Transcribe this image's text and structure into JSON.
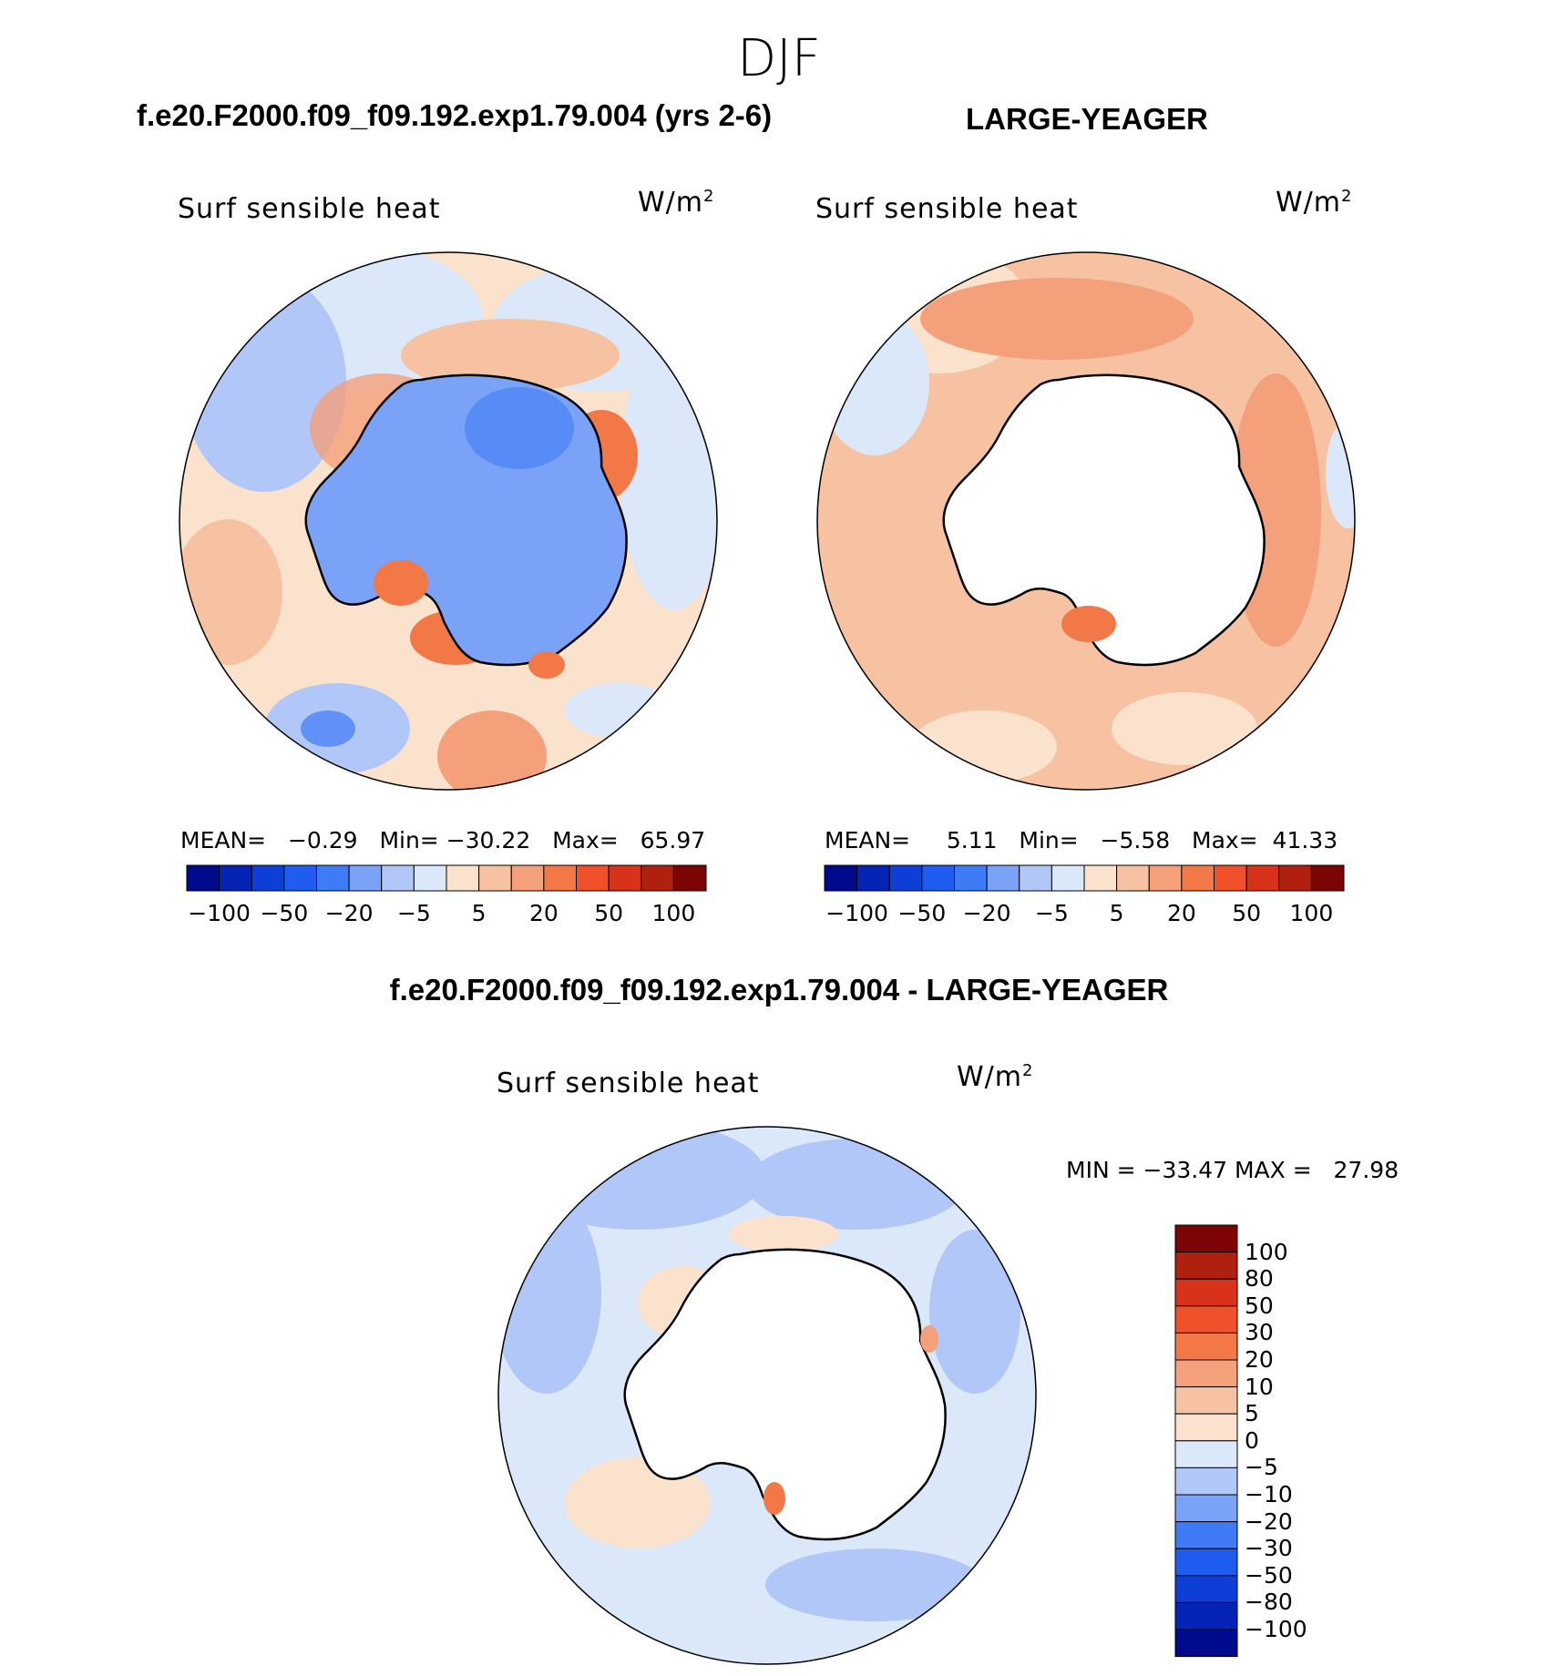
{
  "season": "DJF",
  "panels": [
    {
      "case_title": "f.e20.F2000.f09_f09.192.exp1.79.004 (yrs 2-6)",
      "variable": "Surf  sensible  heat",
      "units": "W/m",
      "units_sup": "2",
      "stats": {
        "mean_label": "MEAN=",
        "mean": "−0.29",
        "min_label": "Min=",
        "min": "−30.22",
        "max_label": "Max=",
        "max": "65.97"
      },
      "colorbar_ticks": [
        "−100",
        "−50",
        "−20",
        "−5",
        "5",
        "20",
        "50",
        "100"
      ]
    },
    {
      "case_title": "LARGE-YEAGER",
      "variable": "Surf  sensible  heat",
      "units": "W/m",
      "units_sup": "2",
      "stats": {
        "mean_label": "MEAN=",
        "mean": "5.11",
        "min_label": "Min=",
        "min": "−5.58",
        "max_label": "Max=",
        "max": "41.33"
      },
      "colorbar_ticks": [
        "−100",
        "−50",
        "−20",
        "−5",
        "5",
        "20",
        "50",
        "100"
      ]
    },
    {
      "case_title": "f.e20.F2000.f09_f09.192.exp1.79.004 - LARGE-YEAGER",
      "variable": "Surf  sensible  heat",
      "units": "W/m",
      "units_sup": "2",
      "stats": {
        "min_label": "MIN  =",
        "min": "−33.47",
        "max_label": "MAX  =",
        "max": "27.98"
      },
      "colorbar_ticks": [
        "100",
        "80",
        "50",
        "30",
        "20",
        "10",
        "5",
        "0",
        "−5",
        "−10",
        "−20",
        "−30",
        "−50",
        "−80",
        "−100"
      ]
    }
  ],
  "colors": {
    "abs_scale": [
      "#000a8c",
      "#0523b4",
      "#0d3fd6",
      "#1f5cf0",
      "#3f7bf5",
      "#7aa2f7",
      "#b1c7f7",
      "#dbe8fa",
      "#fbe2cd",
      "#f7c2a2",
      "#f4a07a",
      "#f27848",
      "#f0502a",
      "#d8321a",
      "#b0200e",
      "#7d0404"
    ],
    "diff_scale": [
      "#000a8c",
      "#0523b4",
      "#0d3fd6",
      "#1f5cf0",
      "#3f7bf5",
      "#7aa2f7",
      "#b1c7f7",
      "#dbe8fa",
      "#fbe2cd",
      "#f7c2a2",
      "#f4a07a",
      "#f27848",
      "#f0502a",
      "#d8321a",
      "#b0200e",
      "#7d0404"
    ]
  }
}
